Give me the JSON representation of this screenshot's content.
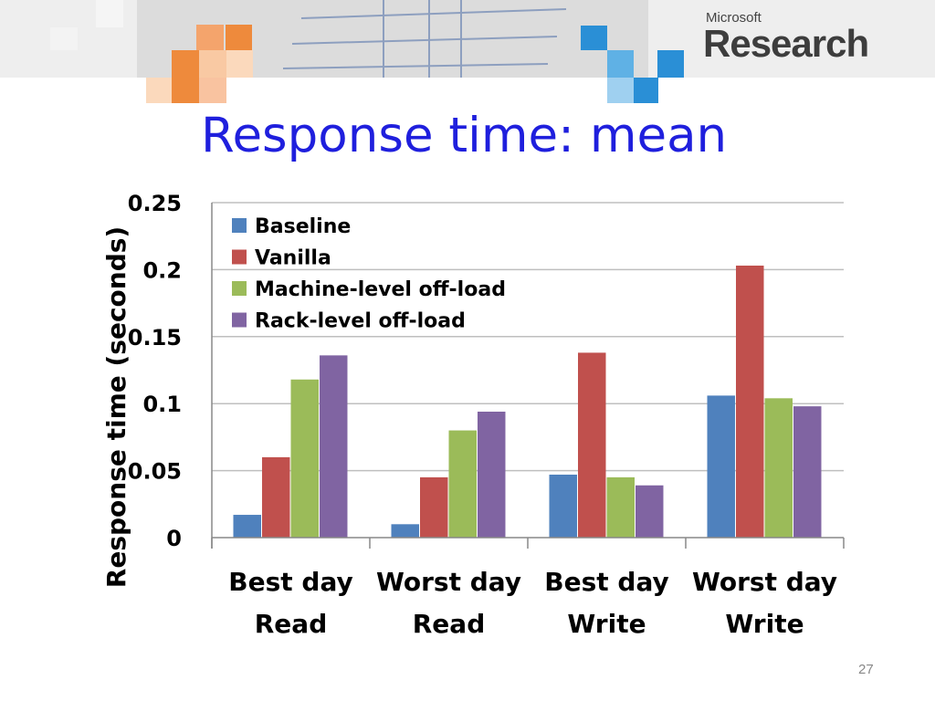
{
  "slide": {
    "title": "Response time: mean",
    "page_number": "27",
    "logo": {
      "small": "Microsoft",
      "big": "Research"
    }
  },
  "colors": {
    "Baseline": "#4f81bd",
    "Vanilla": "#c0504d",
    "Machine-level off-load": "#9bbb59",
    "Rack-level off-load": "#8064a2",
    "gridline": "#bfbfbf",
    "title": "#1f1fdd"
  },
  "chart_data": {
    "type": "bar",
    "title": "",
    "ylabel": "Response time (seconds)",
    "xlabel": "",
    "ylim": [
      0,
      0.25
    ],
    "yticks": [
      "0",
      "0.05",
      "0.1",
      "0.15",
      "0.2",
      "0.25"
    ],
    "grid": true,
    "legend_position": "top-left",
    "categories": [
      [
        "Best day",
        "Read"
      ],
      [
        "Worst day",
        "Read"
      ],
      [
        "Best day",
        "Write"
      ],
      [
        "Worst day",
        "Write"
      ]
    ],
    "series": [
      {
        "name": "Baseline",
        "values": [
          0.017,
          0.01,
          0.047,
          0.106
        ]
      },
      {
        "name": "Vanilla",
        "values": [
          0.06,
          0.045,
          0.138,
          0.203
        ]
      },
      {
        "name": "Machine-level off-load",
        "values": [
          0.118,
          0.08,
          0.045,
          0.104
        ]
      },
      {
        "name": "Rack-level off-load",
        "values": [
          0.136,
          0.094,
          0.039,
          0.098
        ]
      }
    ]
  }
}
